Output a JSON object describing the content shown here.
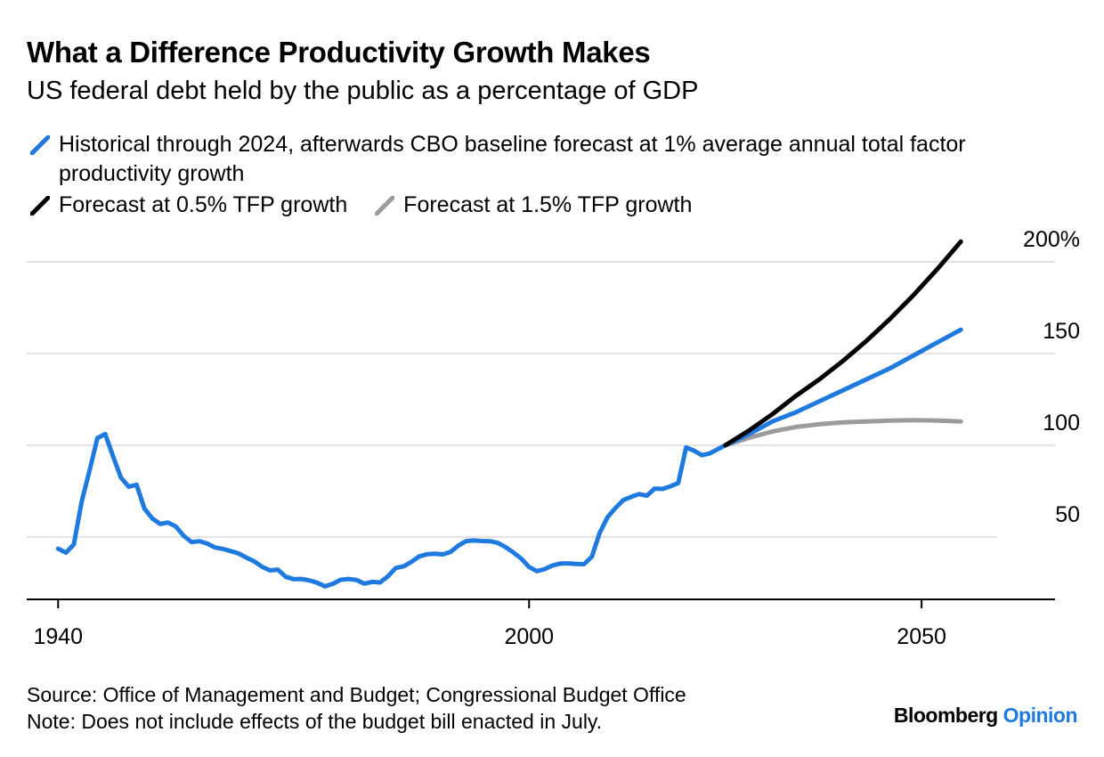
{
  "header": {
    "title": "What a Difference Productivity Growth Makes",
    "subtitle": "US federal debt held by the public as a percentage of GDP"
  },
  "legend": [
    {
      "label": "Historical through 2024, afterwards CBO baseline forecast at 1% average annual total factor productivity growth",
      "color": "#1f7ae0"
    },
    {
      "label": "Forecast at 0.5% TFP growth",
      "color": "#000000"
    },
    {
      "label": "Forecast at 1.5% TFP growth",
      "color": "#9b9b9b"
    }
  ],
  "footer": {
    "source": "Source: Office of Management and Budget; Congressional Budget Office",
    "note": "Note: Does not include effects of the budget bill enacted in July.",
    "brand_name": "Bloomberg",
    "brand_suffix": "Opinion"
  },
  "chart_data": {
    "type": "line",
    "xlim": [
      1936,
      2067
    ],
    "ylim": [
      16,
      200
    ],
    "x_ticks": [
      {
        "value": 1940,
        "label": "1940"
      },
      {
        "value": 2000,
        "label": "2000"
      },
      {
        "value": 2050,
        "label": "2050"
      }
    ],
    "y_ticks": [
      {
        "value": 200,
        "label": "200%"
      },
      {
        "value": 150,
        "label": "150"
      },
      {
        "value": 100,
        "label": "100"
      },
      {
        "value": 50,
        "label": "50"
      }
    ],
    "grid": true,
    "legend_position": "top",
    "series": [
      {
        "name": "Historical through 2024, afterwards CBO baseline forecast at 1% average annual total factor productivity growth",
        "color": "#1f7ae0",
        "x": [
          1940,
          1941,
          1942,
          1943,
          1944,
          1945,
          1946,
          1947,
          1948,
          1949,
          1950,
          1951,
          1952,
          1953,
          1954,
          1955,
          1956,
          1957,
          1958,
          1959,
          1960,
          1961,
          1962,
          1963,
          1964,
          1965,
          1966,
          1967,
          1968,
          1969,
          1970,
          1971,
          1972,
          1973,
          1974,
          1975,
          1976,
          1977,
          1978,
          1979,
          1980,
          1981,
          1982,
          1983,
          1984,
          1985,
          1986,
          1987,
          1988,
          1989,
          1990,
          1991,
          1992,
          1993,
          1994,
          1995,
          1996,
          1997,
          1998,
          1999,
          2000,
          2001,
          2002,
          2003,
          2004,
          2005,
          2006,
          2007,
          2008,
          2009,
          2010,
          2011,
          2012,
          2013,
          2014,
          2015,
          2016,
          2017,
          2018,
          2019,
          2020,
          2021,
          2022,
          2023,
          2024,
          2025,
          2028,
          2031,
          2034,
          2037,
          2040,
          2043,
          2046,
          2049,
          2052,
          2055
        ],
        "y": [
          43.6,
          41.5,
          45.9,
          69.2,
          86.0,
          103.9,
          106.1,
          93.9,
          82.4,
          77.4,
          78.5,
          65.4,
          60.1,
          57.1,
          57.9,
          55.7,
          50.6,
          47.2,
          47.7,
          46.4,
          44.3,
          43.5,
          42.3,
          41.0,
          38.7,
          36.7,
          33.7,
          31.8,
          32.2,
          28.3,
          27.0,
          27.1,
          26.4,
          25.1,
          23.1,
          24.5,
          26.7,
          27.1,
          26.6,
          24.6,
          25.5,
          25.2,
          28.5,
          33.1,
          34.0,
          36.4,
          39.4,
          40.6,
          40.9,
          40.5,
          41.9,
          45.3,
          47.8,
          48.1,
          47.8,
          47.7,
          46.8,
          44.5,
          41.6,
          38.2,
          33.6,
          31.4,
          32.5,
          34.5,
          35.5,
          35.6,
          35.3,
          35.2,
          39.3,
          52.3,
          60.8,
          65.8,
          70.1,
          71.9,
          73.4,
          72.5,
          76.4,
          76.2,
          77.6,
          79.4,
          98.8,
          97.1,
          94.6,
          95.5,
          97.8,
          100.0,
          106.0,
          113.0,
          118.0,
          124.0,
          130.0,
          136.0,
          142.0,
          149.0,
          156.0,
          163.0
        ]
      },
      {
        "name": "Forecast at 0.5% TFP growth",
        "color": "#000000",
        "x": [
          2025,
          2028,
          2031,
          2034,
          2037,
          2040,
          2043,
          2046,
          2049,
          2052,
          2055
        ],
        "y": [
          100.0,
          108.0,
          117.0,
          127.0,
          136.0,
          146.0,
          157.0,
          169.0,
          182.0,
          196.0,
          211.0
        ]
      },
      {
        "name": "Forecast at 1.5% TFP growth",
        "color": "#9b9b9b",
        "x": [
          2025,
          2028,
          2031,
          2034,
          2037,
          2040,
          2043,
          2046,
          2049,
          2052,
          2055
        ],
        "y": [
          100.0,
          104.0,
          107.5,
          110.0,
          111.5,
          112.5,
          113.0,
          113.5,
          113.7,
          113.5,
          113.0
        ]
      }
    ]
  }
}
